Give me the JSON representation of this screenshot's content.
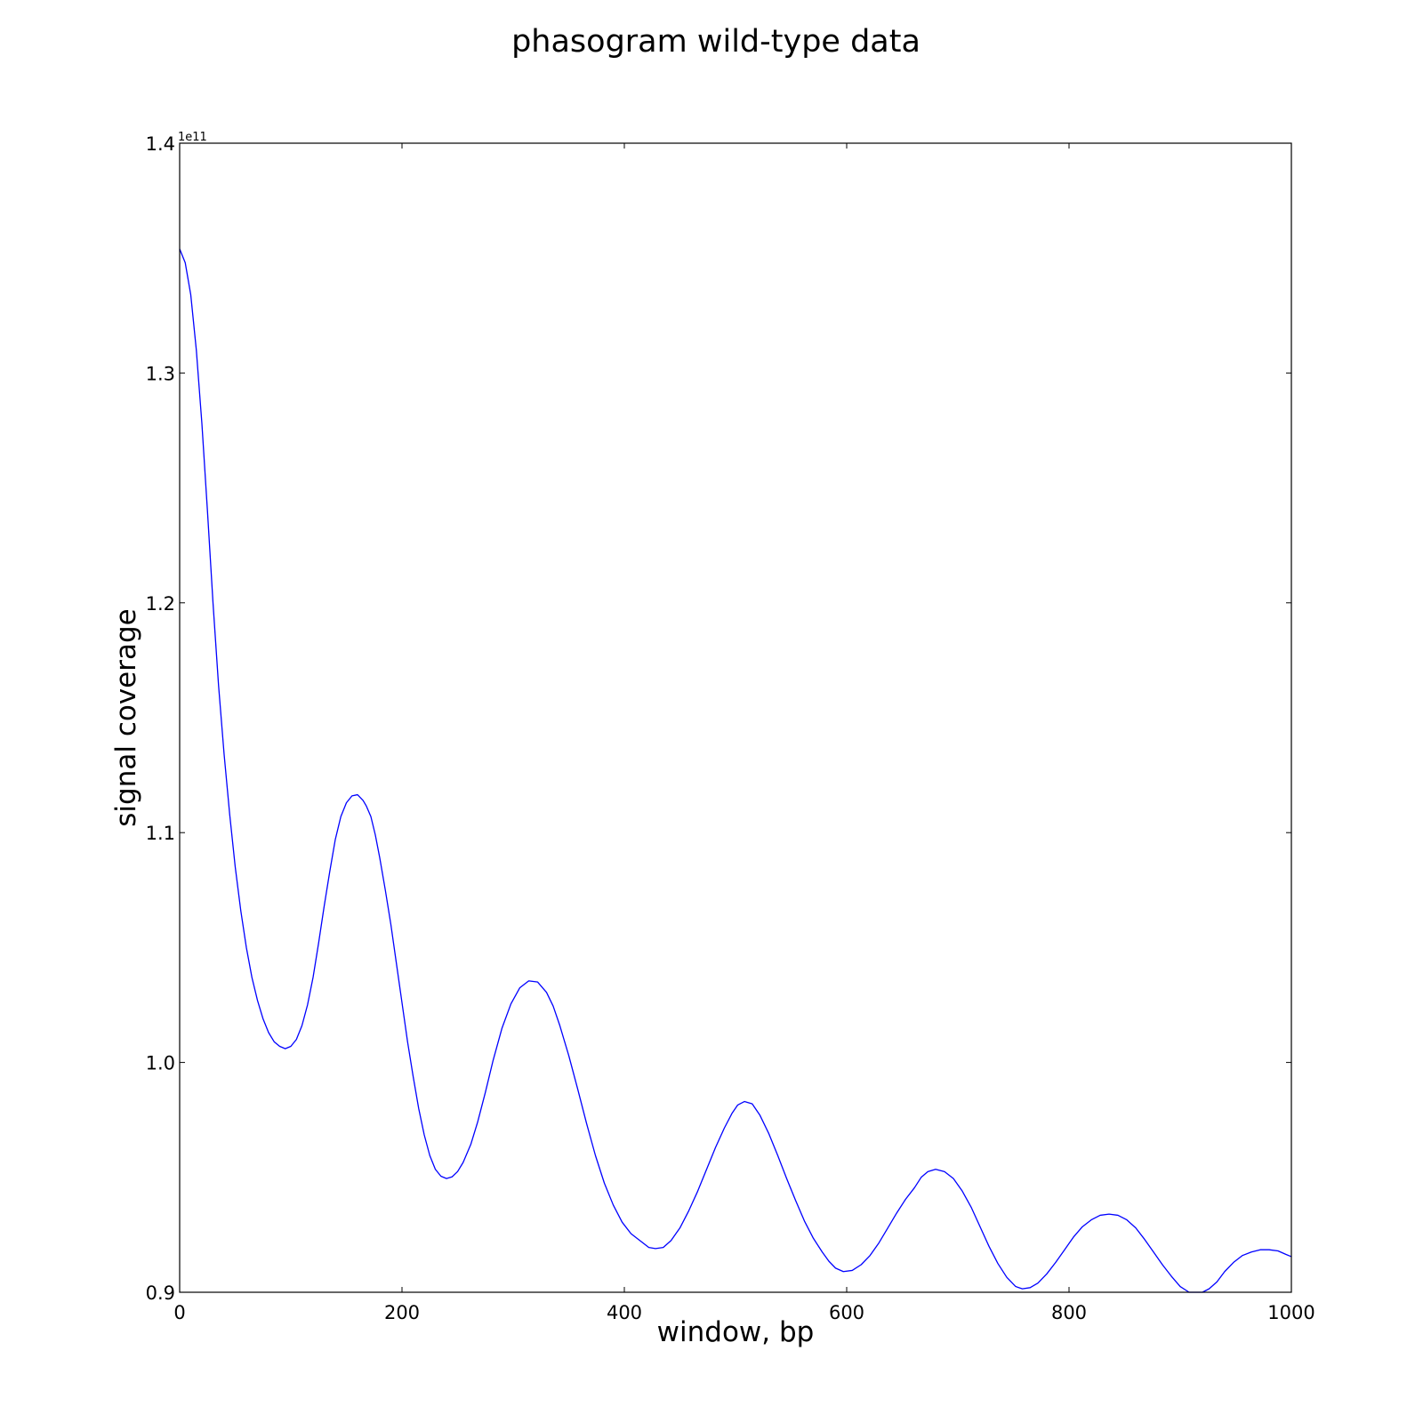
{
  "chart_data": {
    "type": "line",
    "title": "phasogram wild-type data",
    "xlabel": "window, bp",
    "ylabel": "signal coverage",
    "y_offset_label": "1e11",
    "xlim": [
      0,
      1000
    ],
    "ylim": [
      0.9,
      1.4
    ],
    "x_ticks": [
      0,
      200,
      400,
      600,
      800,
      1000
    ],
    "x_tick_labels": [
      "0",
      "200",
      "400",
      "600",
      "800",
      "1000"
    ],
    "y_ticks": [
      0.9,
      1.0,
      1.1,
      1.2,
      1.3,
      1.4
    ],
    "y_tick_labels": [
      "0.9",
      "1.0",
      "1.1",
      "1.2",
      "1.3",
      "1.4"
    ],
    "grid": false,
    "line_color": "#0000ff",
    "series": [
      {
        "name": "wild-type",
        "x": [
          0,
          5,
          10,
          15,
          20,
          25,
          30,
          35,
          40,
          45,
          50,
          55,
          60,
          65,
          70,
          75,
          80,
          85,
          90,
          95,
          100,
          105,
          110,
          115,
          120,
          125,
          130,
          135,
          140,
          145,
          150,
          155,
          160,
          165,
          168,
          172,
          176,
          180,
          185,
          190,
          195,
          200,
          205,
          210,
          215,
          220,
          225,
          230,
          235,
          240,
          245,
          250,
          255,
          262,
          268,
          275,
          282,
          290,
          298,
          306,
          314,
          322,
          330,
          336,
          342,
          350,
          358,
          366,
          374,
          382,
          390,
          398,
          406,
          414,
          422,
          428,
          435,
          442,
          450,
          458,
          466,
          474,
          482,
          490,
          497,
          502,
          508,
          515,
          522,
          530,
          538,
          546,
          554,
          562,
          570,
          578,
          584,
          590,
          597,
          605,
          613,
          621,
          629,
          637,
          645,
          653,
          661,
          667,
          673,
          680,
          688,
          696,
          704,
          712,
          720,
          728,
          736,
          744,
          752,
          758,
          765,
          772,
          780,
          788,
          796,
          804,
          812,
          820,
          828,
          836,
          844,
          852,
          860,
          868,
          876,
          884,
          892,
          900,
          908,
          915,
          920,
          926,
          933,
          940,
          948,
          956,
          964,
          972,
          980,
          988,
          995,
          1000
        ],
        "y": [
          1.354,
          1.348,
          1.334,
          1.31,
          1.278,
          1.24,
          1.2,
          1.164,
          1.134,
          1.108,
          1.085,
          1.066,
          1.05,
          1.037,
          1.027,
          1.019,
          1.013,
          1.009,
          1.007,
          1.006,
          1.007,
          1.01,
          1.016,
          1.025,
          1.037,
          1.052,
          1.068,
          1.083,
          1.097,
          1.107,
          1.113,
          1.116,
          1.1165,
          1.114,
          1.1115,
          1.107,
          1.099,
          1.089,
          1.075,
          1.06,
          1.043,
          1.026,
          1.009,
          0.994,
          0.98,
          0.9685,
          0.9595,
          0.9535,
          0.9505,
          0.9495,
          0.9502,
          0.9525,
          0.9565,
          0.9645,
          0.974,
          0.987,
          1.001,
          1.015,
          1.0255,
          1.0325,
          1.0355,
          1.035,
          1.0305,
          1.0245,
          1.016,
          1.003,
          0.9885,
          0.9735,
          0.9595,
          0.9475,
          0.938,
          0.9305,
          0.9255,
          0.9225,
          0.9195,
          0.919,
          0.9195,
          0.9225,
          0.928,
          0.9355,
          0.944,
          0.9535,
          0.963,
          0.9715,
          0.978,
          0.9815,
          0.983,
          0.982,
          0.977,
          0.969,
          0.9595,
          0.9495,
          0.94,
          0.931,
          0.9235,
          0.9175,
          0.9135,
          0.9105,
          0.909,
          0.9095,
          0.912,
          0.916,
          0.9215,
          0.928,
          0.9345,
          0.9405,
          0.9455,
          0.95,
          0.9525,
          0.9535,
          0.9525,
          0.9495,
          0.944,
          0.937,
          0.9285,
          0.92,
          0.9125,
          0.9065,
          0.9025,
          0.9015,
          0.902,
          0.904,
          0.908,
          0.913,
          0.9185,
          0.924,
          0.9285,
          0.9315,
          0.9335,
          0.934,
          0.9335,
          0.9315,
          0.928,
          0.923,
          0.9175,
          0.912,
          0.907,
          0.9025,
          0.9,
          0.9,
          0.9,
          0.9015,
          0.9045,
          0.909,
          0.913,
          0.916,
          0.9175,
          0.9185,
          0.9185,
          0.918,
          0.9165,
          0.9155
        ]
      }
    ]
  }
}
